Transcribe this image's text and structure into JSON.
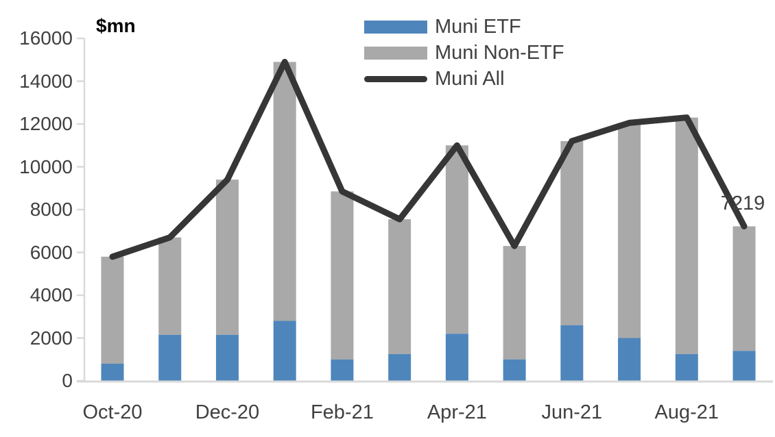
{
  "chart_data": {
    "type": "bar",
    "subtype": "stacked-bars-with-line-overlay",
    "title": "",
    "unit_label": "$mn",
    "xlabel": "",
    "ylabel": "$mn",
    "categories": [
      "Oct-20",
      "Nov-20",
      "Dec-20",
      "Jan-21",
      "Feb-21",
      "Mar-21",
      "Apr-21",
      "May-21",
      "Jun-21",
      "Jul-21",
      "Aug-21",
      "Sep-21"
    ],
    "x_tick_labels": [
      "Oct-20",
      "Dec-20",
      "Feb-21",
      "Apr-21",
      "Jun-21",
      "Aug-21"
    ],
    "series": [
      {
        "name": "Muni ETF",
        "type": "bar",
        "stacked": true,
        "color": "#4E86BC",
        "values": [
          800,
          2150,
          2150,
          2800,
          1000,
          1250,
          2200,
          1000,
          2600,
          2000,
          1250,
          1400
        ]
      },
      {
        "name": "Muni Non-ETF",
        "type": "bar",
        "stacked": true,
        "color": "#A9A9A9",
        "values": [
          5000,
          4550,
          7250,
          12100,
          7850,
          6300,
          8800,
          5300,
          8600,
          10050,
          11050,
          5819
        ]
      },
      {
        "name": "Muni All",
        "type": "line",
        "color": "#363636",
        "values": [
          5800,
          6700,
          9400,
          14900,
          8850,
          7550,
          11000,
          6300,
          11200,
          12050,
          12300,
          7219
        ]
      }
    ],
    "y_axis": {
      "min": 0,
      "max": 16000,
      "step": 2000,
      "tick_labels": [
        "0",
        "2000",
        "4000",
        "6000",
        "8000",
        "10000",
        "12000",
        "14000",
        "16000"
      ]
    },
    "legend": [
      {
        "label": "Muni ETF",
        "marker": "bar-swatch",
        "color": "#4E86BC"
      },
      {
        "label": "Muni Non-ETF",
        "marker": "bar-swatch",
        "color": "#A9A9A9"
      },
      {
        "label": "Muni All",
        "marker": "line-swatch",
        "color": "#363636"
      }
    ],
    "legend_position": "top-center",
    "grid": false,
    "annotations": [
      {
        "text": "7219",
        "series": "Muni All",
        "category": "Sep-21",
        "value": 7219
      }
    ],
    "colors": {
      "axis": "#D9D9D9",
      "tick_text": "#404040",
      "annotation_text": "#404040"
    }
  }
}
